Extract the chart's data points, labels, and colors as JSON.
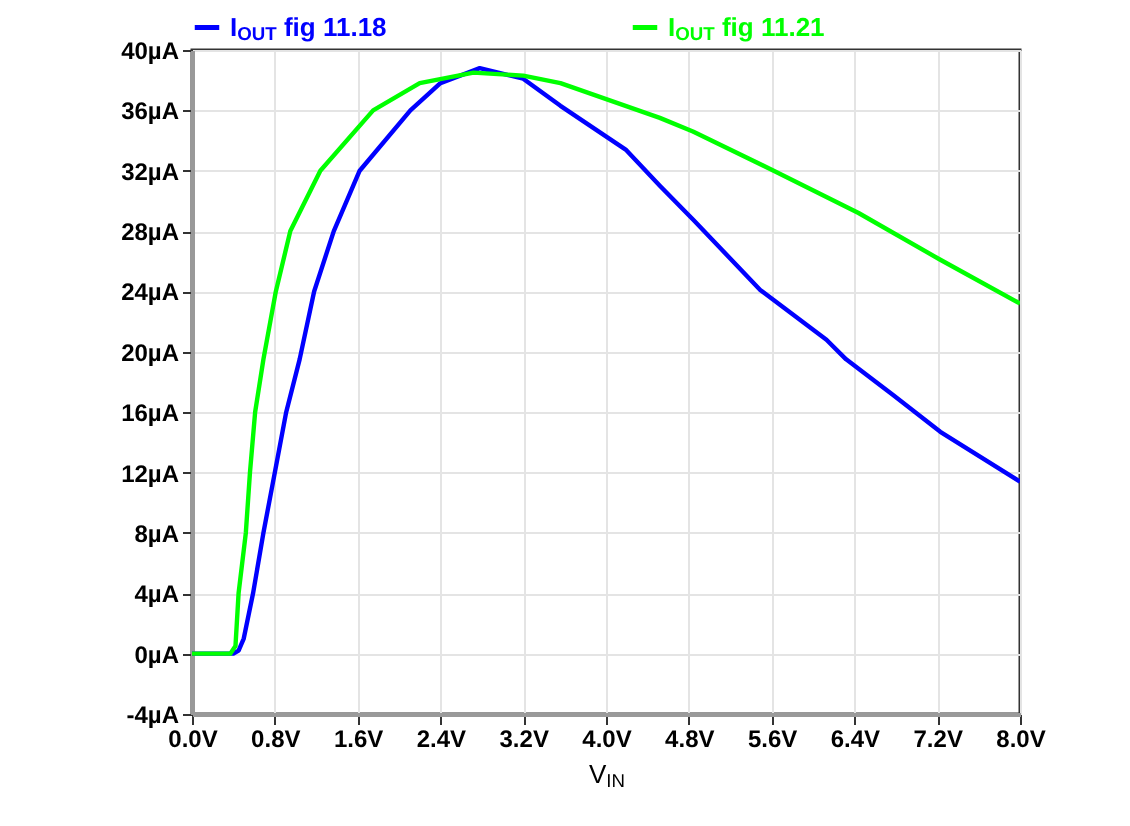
{
  "chart_data": {
    "type": "line",
    "xlabel": "V$_{IN}$",
    "legend": "top",
    "grid": true,
    "marker": "none",
    "line_style": "solid",
    "xlim": [
      0,
      8
    ],
    "ylim": [
      -4,
      40
    ],
    "xticks": [
      {
        "value": 0,
        "label": "0.0V"
      },
      {
        "value": 0.8,
        "label": "0.8V"
      },
      {
        "value": 1.6,
        "label": "1.6V"
      },
      {
        "value": 2.4,
        "label": "2.4V"
      },
      {
        "value": 3.2,
        "label": "3.2V"
      },
      {
        "value": 4,
        "label": "4.0V"
      },
      {
        "value": 4.8,
        "label": "4.8V"
      },
      {
        "value": 5.6,
        "label": "5.6V"
      },
      {
        "value": 6.4,
        "label": "6.4V"
      },
      {
        "value": 7.2,
        "label": "7.2V"
      },
      {
        "value": 8,
        "label": "8.0V"
      }
    ],
    "yticks": [
      {
        "value": -4,
        "label": "-4µA"
      },
      {
        "value": 0,
        "label": "0µA"
      },
      {
        "value": 4,
        "label": "4µA"
      },
      {
        "value": 8,
        "label": "8µA"
      },
      {
        "value": 12,
        "label": "12µA"
      },
      {
        "value": 16,
        "label": "16µA"
      },
      {
        "value": 20,
        "label": "20µA"
      },
      {
        "value": 24,
        "label": "24µA"
      },
      {
        "value": 28,
        "label": "28µA"
      },
      {
        "value": 32,
        "label": "32µA"
      },
      {
        "value": 36,
        "label": "36µA"
      },
      {
        "value": 40,
        "label": "40µA"
      }
    ],
    "series": [
      {
        "name": "I$_{OUT}$ fig 11.18",
        "color": "#0000ff",
        "x": [
          0,
          0.4,
          0.45,
          0.5,
          0.59,
          0.69,
          0.8,
          0.91,
          1.04,
          1.18,
          1.37,
          1.62,
          2.11,
          2.4,
          2.78,
          3.2,
          3.56,
          4.19,
          4.52,
          4.85,
          5.49,
          6.13,
          6.32,
          6.78,
          7.23,
          8.0
        ],
        "values": [
          0,
          0,
          0.2,
          1,
          4,
          8,
          12,
          16,
          19.5,
          24,
          28,
          32,
          36,
          37.8,
          38.8,
          38.1,
          36.3,
          33.4,
          31.0,
          28.7,
          24.1,
          20.8,
          19.5,
          17.1,
          14.7,
          11.4
        ]
      },
      {
        "name": "I$_{OUT}$ fig 11.21",
        "color": "#00ff00",
        "x": [
          0,
          0.37,
          0.42,
          0.45,
          0.52,
          0.56,
          0.61,
          0.69,
          0.81,
          0.95,
          1.24,
          1.75,
          2.2,
          2.72,
          3.2,
          3.56,
          4.52,
          4.84,
          5.62,
          6.44,
          7.23,
          8.0
        ],
        "values": [
          0,
          0,
          0.5,
          4,
          8,
          12,
          16,
          19.5,
          24,
          28,
          32,
          36,
          37.8,
          38.5,
          38.3,
          37.8,
          35.5,
          34.6,
          32.0,
          29.2,
          26.1,
          23.2
        ]
      }
    ]
  }
}
